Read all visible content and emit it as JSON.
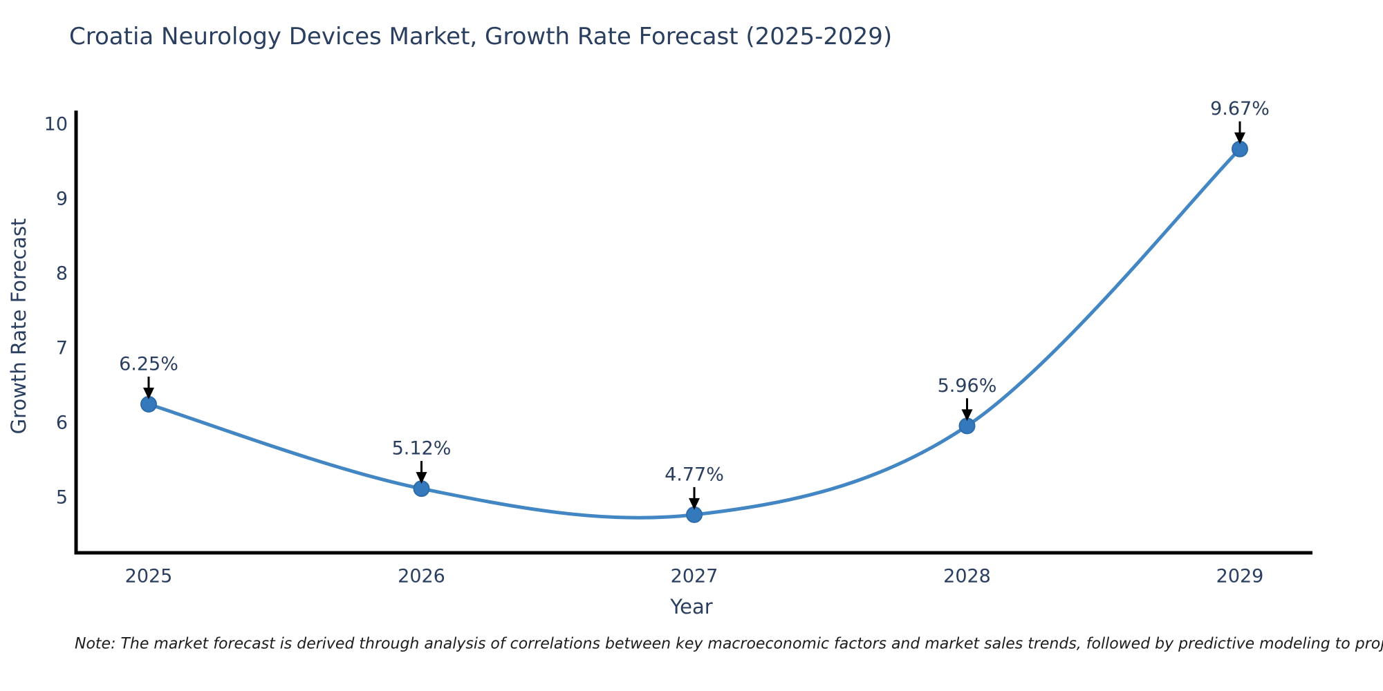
{
  "page": {
    "title": "Croatia Neurology Devices Market, Growth Rate Forecast (2025-2029)",
    "note": "Note: The market forecast is derived through analysis of correlations between key macroeconomic factors and market sales trends, followed by predictive modeling to project future sales"
  },
  "chart_data": {
    "type": "line",
    "title": "Croatia Neurology Devices Market, Growth Rate Forecast (2025-2029)",
    "xlabel": "Year",
    "ylabel": "Growth Rate Forecast",
    "categories": [
      "2025",
      "2026",
      "2027",
      "2028",
      "2029"
    ],
    "values": [
      6.25,
      5.12,
      4.77,
      5.96,
      9.67
    ],
    "point_labels": [
      "6.25%",
      "5.12%",
      "4.77%",
      "5.96%",
      "9.67%"
    ],
    "yticks": [
      5,
      6,
      7,
      8,
      9,
      10
    ],
    "ylim": [
      4.26,
      10.185
    ],
    "line_shape": "spline",
    "grid": false,
    "legend_position": "none",
    "colors": {
      "line": "#4286c3",
      "marker_fill": "#3579bd",
      "marker_edge": "#2d6ca8",
      "axis_line": "#000000",
      "tick_text": "#2a3f5f",
      "annotation_text": "#2a3f5f",
      "arrow": "#000000"
    }
  }
}
